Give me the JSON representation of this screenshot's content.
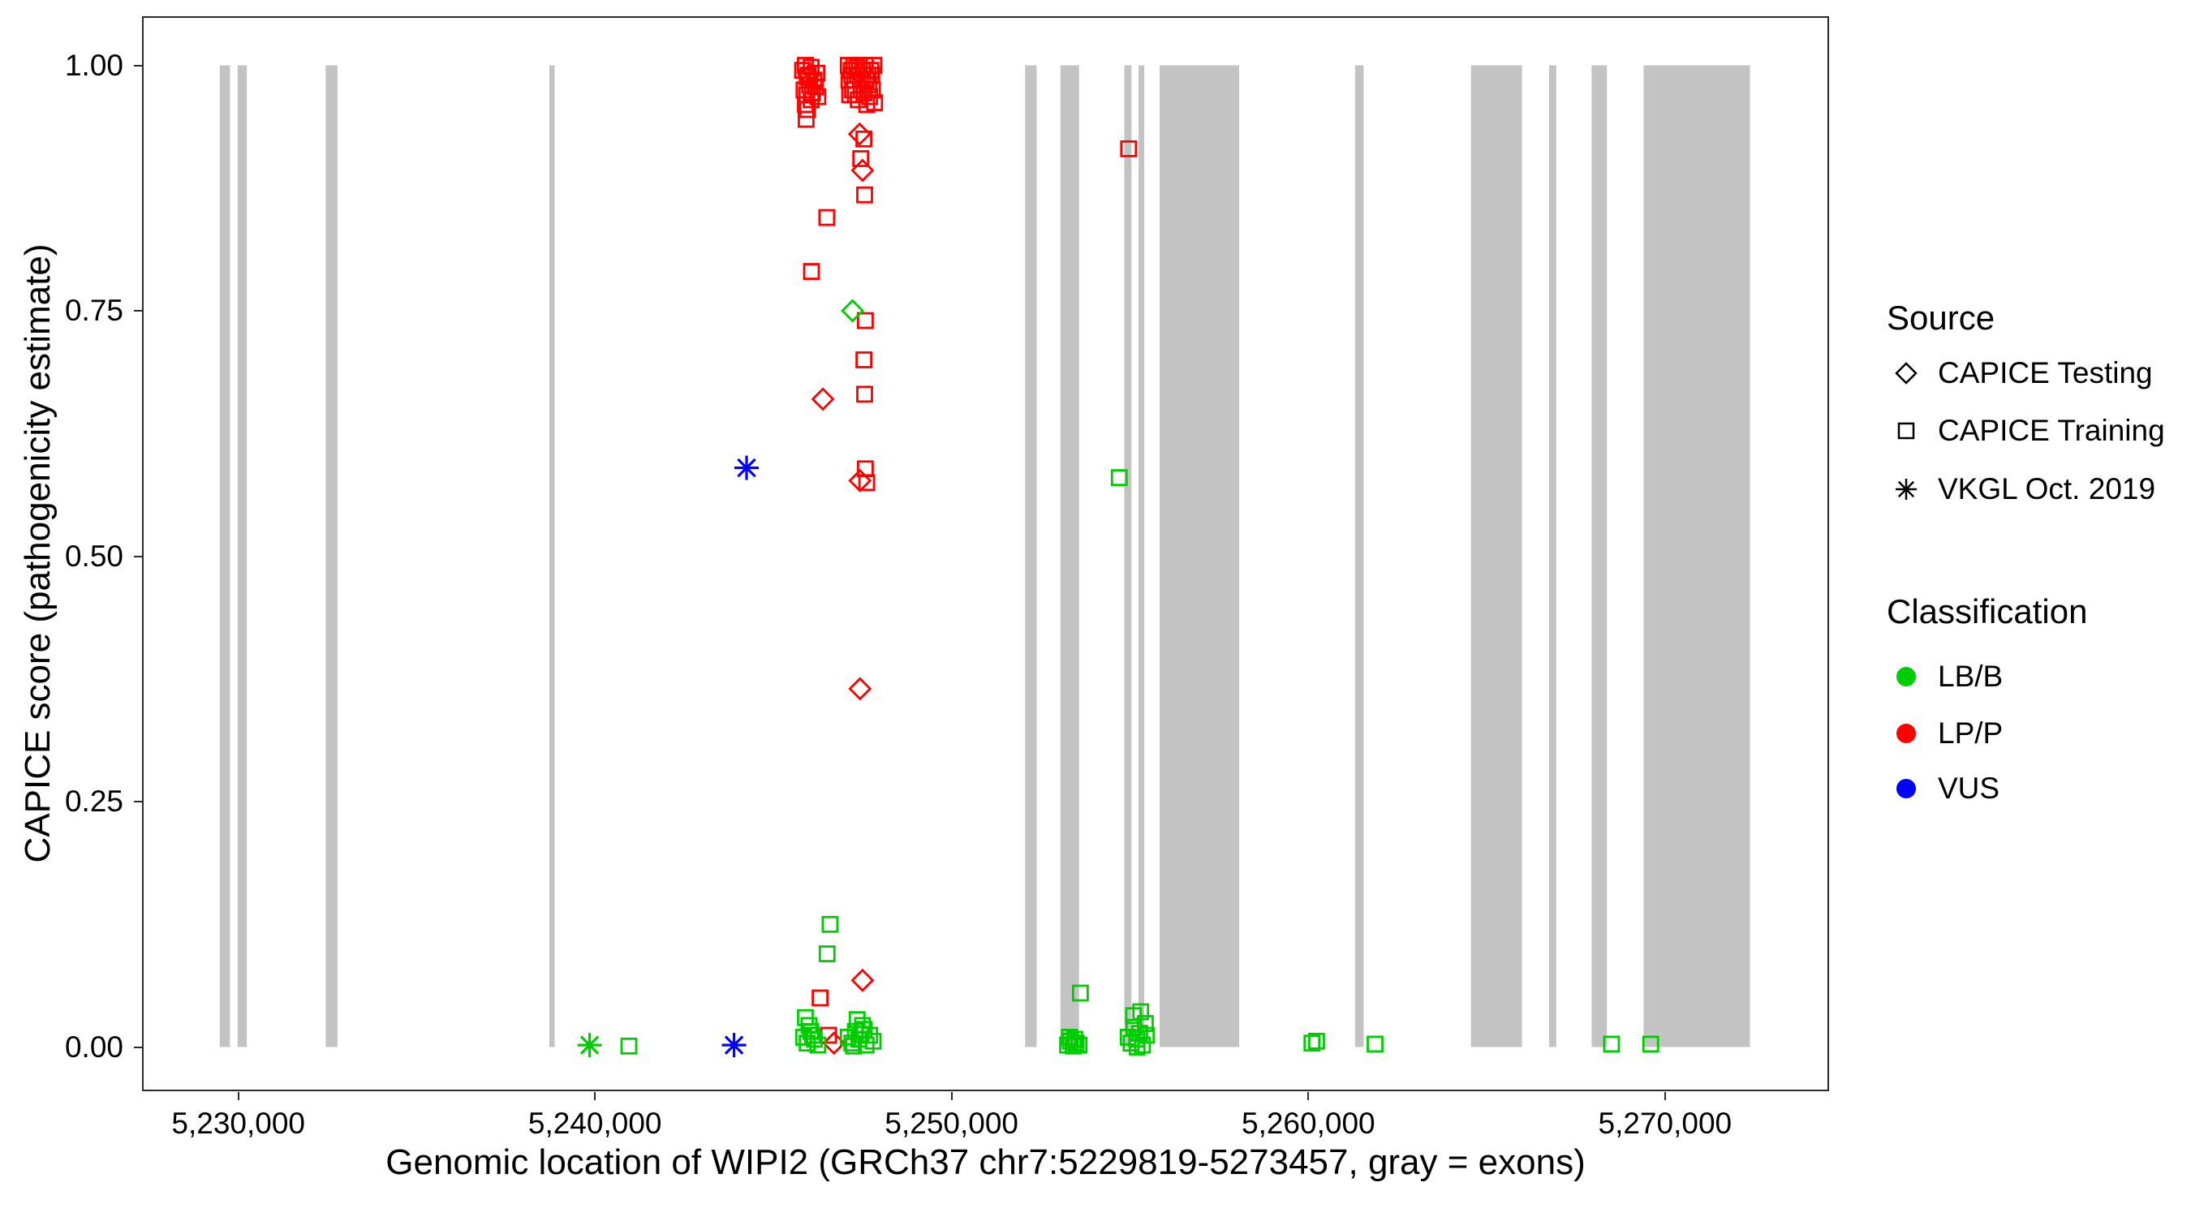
{
  "chart_data": {
    "type": "scatter",
    "title": "",
    "xlabel": "Genomic location of WIPI2 (GRCh37 chr7:5229819-5273457, gray = exons)",
    "ylabel": "CAPICE score (pathogenicity estimate)",
    "xlim": [
      5227300,
      5274600
    ],
    "ylim": [
      -0.045,
      1.05
    ],
    "grid": "off",
    "legend_position": "right",
    "x_ticks": [
      {
        "value": 5230000,
        "label": "5,230,000"
      },
      {
        "value": 5240000,
        "label": "5,240,000"
      },
      {
        "value": 5250000,
        "label": "5,250,000"
      },
      {
        "value": 5260000,
        "label": "5,260,000"
      },
      {
        "value": 5270000,
        "label": "5,270,000"
      }
    ],
    "y_ticks": [
      {
        "value": 0,
        "label": "0.00"
      },
      {
        "value": 0.25,
        "label": "0.25"
      },
      {
        "value": 0.5,
        "label": "0.50"
      },
      {
        "value": 0.75,
        "label": "0.75"
      },
      {
        "value": 1,
        "label": "1.00"
      }
    ],
    "exon_color": "#C3C3C3",
    "exons": [
      [
        5229480,
        5229770
      ],
      [
        5229980,
        5230240
      ],
      [
        5232450,
        5232780
      ],
      [
        5238720,
        5238870
      ],
      [
        5252060,
        5252380
      ],
      [
        5253050,
        5253570
      ],
      [
        5254840,
        5255040
      ],
      [
        5255240,
        5255400
      ],
      [
        5255830,
        5258060
      ],
      [
        5261310,
        5261550
      ],
      [
        5264560,
        5265990
      ],
      [
        5266750,
        5266950
      ],
      [
        5267940,
        5268370
      ],
      [
        5269400,
        5272380
      ]
    ],
    "colors": {
      "LB/B": "#00CD00",
      "LP/P": "#FF0000",
      "VUS": "#0000FF"
    },
    "shapes": {
      "CAPICE Testing": "diamond",
      "CAPICE Training": "square",
      "VKGL Oct. 2019": "asterisk"
    },
    "legend": {
      "source": {
        "title": "Source",
        "items": [
          {
            "label": "CAPICE Testing",
            "shape": "diamond"
          },
          {
            "label": "CAPICE Training",
            "shape": "square"
          },
          {
            "label": "VKGL Oct. 2019",
            "shape": "asterisk"
          }
        ]
      },
      "classification": {
        "title": "Classification",
        "items": [
          {
            "label": "LB/B",
            "color": "#00CD00"
          },
          {
            "label": "LP/P",
            "color": "#FF0000"
          },
          {
            "label": "VUS",
            "color": "#0000FF"
          }
        ]
      }
    },
    "series": [
      {
        "source": "CAPICE Training",
        "classification": "LP/P",
        "shape": "square",
        "points": [
          [
            5245820,
            0.995
          ],
          [
            5245900,
            1.0
          ],
          [
            5245980,
            0.99
          ],
          [
            5246060,
            0.998
          ],
          [
            5246140,
            0.985
          ],
          [
            5246220,
            0.992
          ],
          [
            5245860,
            0.975
          ],
          [
            5245940,
            0.97
          ],
          [
            5246020,
            0.98
          ],
          [
            5246100,
            0.972
          ],
          [
            5246180,
            0.978
          ],
          [
            5245900,
            0.96
          ],
          [
            5246060,
            0.965
          ],
          [
            5245950,
            0.988
          ],
          [
            5246250,
            0.968
          ],
          [
            5245920,
            0.945
          ],
          [
            5245960,
            0.955
          ],
          [
            5247100,
            1.0
          ],
          [
            5247180,
            0.995
          ],
          [
            5247260,
            1.0
          ],
          [
            5247340,
            0.998
          ],
          [
            5247420,
            1.0
          ],
          [
            5247500,
            0.995
          ],
          [
            5247580,
            1.0
          ],
          [
            5247660,
            0.99
          ],
          [
            5247740,
            0.995
          ],
          [
            5247820,
            1.0
          ],
          [
            5247120,
            0.985
          ],
          [
            5247200,
            0.99
          ],
          [
            5247280,
            0.985
          ],
          [
            5247360,
            0.99
          ],
          [
            5247440,
            0.985
          ],
          [
            5247520,
            0.99
          ],
          [
            5247600,
            0.985
          ],
          [
            5247680,
            0.98
          ],
          [
            5247760,
            0.99
          ],
          [
            5247140,
            0.97
          ],
          [
            5247220,
            0.975
          ],
          [
            5247300,
            0.97
          ],
          [
            5247380,
            0.965
          ],
          [
            5247460,
            0.975
          ],
          [
            5247540,
            0.972
          ],
          [
            5247620,
            0.96
          ],
          [
            5247700,
            0.968
          ],
          [
            5247780,
            0.975
          ],
          [
            5247840,
            0.962
          ],
          [
            5247540,
            0.925
          ],
          [
            5247450,
            0.905
          ],
          [
            5247560,
            0.868
          ],
          [
            5246500,
            0.845
          ],
          [
            5246070,
            0.79
          ],
          [
            5247580,
            0.74
          ],
          [
            5247540,
            0.7
          ],
          [
            5247560,
            0.665
          ],
          [
            5247580,
            0.589
          ],
          [
            5247620,
            0.575
          ],
          [
            5254960,
            0.915
          ],
          [
            5246310,
            0.05
          ],
          [
            5246550,
            0.012
          ]
        ]
      },
      {
        "source": "CAPICE Testing",
        "classification": "LP/P",
        "shape": "diamond",
        "points": [
          [
            5246000,
            0.99
          ],
          [
            5247400,
            0.992
          ],
          [
            5247420,
            0.93
          ],
          [
            5247500,
            0.893
          ],
          [
            5246390,
            0.66
          ],
          [
            5247430,
            0.577
          ],
          [
            5247430,
            0.365
          ],
          [
            5247500,
            0.068
          ],
          [
            5246700,
            0.004
          ]
        ]
      },
      {
        "source": "CAPICE Testing",
        "classification": "LB/B",
        "shape": "diamond",
        "points": [
          [
            5247220,
            0.75
          ]
        ]
      },
      {
        "source": "CAPICE Training",
        "classification": "LB/B",
        "shape": "square",
        "points": [
          [
            5254700,
            0.58
          ],
          [
            5246590,
            0.125
          ],
          [
            5246510,
            0.095
          ],
          [
            5253610,
            0.055
          ],
          [
            5245850,
            0.01
          ],
          [
            5245950,
            0.004
          ],
          [
            5246050,
            0.016
          ],
          [
            5246150,
            0.008
          ],
          [
            5246250,
            0.002
          ],
          [
            5246000,
            0.022
          ],
          [
            5246100,
            0.012
          ],
          [
            5245900,
            0.03
          ],
          [
            5247100,
            0.01
          ],
          [
            5247200,
            0.004
          ],
          [
            5247300,
            0.016
          ],
          [
            5247400,
            0.008
          ],
          [
            5247500,
            0.022
          ],
          [
            5247600,
            0.002
          ],
          [
            5247700,
            0.012
          ],
          [
            5247800,
            0.006
          ],
          [
            5247350,
            0.028
          ],
          [
            5247550,
            0.018
          ],
          [
            5247250,
            0.001
          ],
          [
            5247450,
            0.013
          ],
          [
            5240950,
            0.001
          ],
          [
            5253250,
            0.002
          ],
          [
            5253330,
            0.006
          ],
          [
            5253410,
            0.001
          ],
          [
            5253490,
            0.004
          ],
          [
            5253570,
            0.002
          ],
          [
            5253300,
            0.01
          ],
          [
            5253450,
            0.008
          ],
          [
            5254950,
            0.01
          ],
          [
            5255030,
            0.004
          ],
          [
            5255110,
            0.02
          ],
          [
            5255190,
            0.008
          ],
          [
            5255270,
            0.014
          ],
          [
            5255350,
            0.002
          ],
          [
            5255430,
            0.024
          ],
          [
            5255100,
            0.032
          ],
          [
            5255300,
            0.036
          ],
          [
            5255200,
            0.0
          ],
          [
            5255460,
            0.012
          ],
          [
            5260100,
            0.004
          ],
          [
            5260230,
            0.006
          ],
          [
            5261870,
            0.003
          ],
          [
            5268500,
            0.003
          ],
          [
            5269600,
            0.003
          ]
        ]
      },
      {
        "source": "VKGL Oct. 2019",
        "classification": "VUS",
        "shape": "asterisk",
        "points": [
          [
            5244250,
            0.59
          ],
          [
            5243900,
            0.002
          ]
        ]
      },
      {
        "source": "VKGL Oct. 2019",
        "classification": "LB/B",
        "shape": "asterisk",
        "points": [
          [
            5239850,
            0.002
          ]
        ]
      }
    ]
  }
}
